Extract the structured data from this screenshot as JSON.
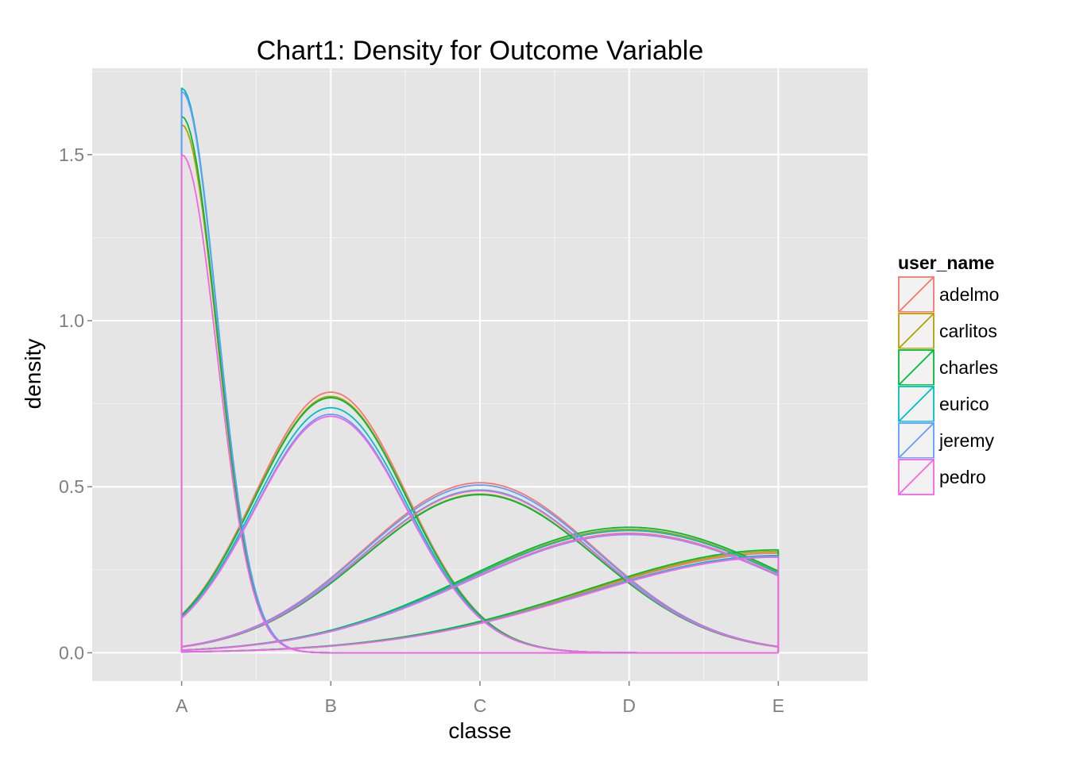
{
  "chart_data": {
    "type": "area",
    "title": "Chart1: Density for Outcome Variable",
    "xlabel": "classe",
    "ylabel": "density",
    "categories": [
      "A",
      "B",
      "C",
      "D",
      "E"
    ],
    "x_domain": [
      0.4,
      5.6
    ],
    "ylim": [
      -0.085,
      1.76
    ],
    "y_ticks": [
      0.0,
      0.5,
      1.0,
      1.5
    ],
    "y_tick_labels": [
      "0.0",
      "0.5",
      "1.0",
      "1.5"
    ],
    "density_range": [
      1,
      5
    ],
    "legend": {
      "title": "user_name",
      "position": "right"
    },
    "series": [
      {
        "name": "adelmo",
        "color": "#F8766D",
        "peaks": [
          1.7,
          0.785,
          0.512,
          0.36,
          0.3
        ]
      },
      {
        "name": "carlitos",
        "color": "#B79F00",
        "peaks": [
          1.59,
          0.772,
          0.478,
          0.372,
          0.305
        ]
      },
      {
        "name": "charles",
        "color": "#00BA38",
        "peaks": [
          1.615,
          0.768,
          0.476,
          0.378,
          0.31
        ]
      },
      {
        "name": "eurico",
        "color": "#00BFC4",
        "peaks": [
          1.7,
          0.738,
          0.49,
          0.368,
          0.293
        ]
      },
      {
        "name": "jeremy",
        "color": "#619CFF",
        "peaks": [
          1.69,
          0.718,
          0.505,
          0.356,
          0.29
        ]
      },
      {
        "name": "pedro",
        "color": "#F564E3",
        "peaks": [
          1.5,
          0.712,
          0.488,
          0.358,
          0.288
        ]
      }
    ]
  }
}
